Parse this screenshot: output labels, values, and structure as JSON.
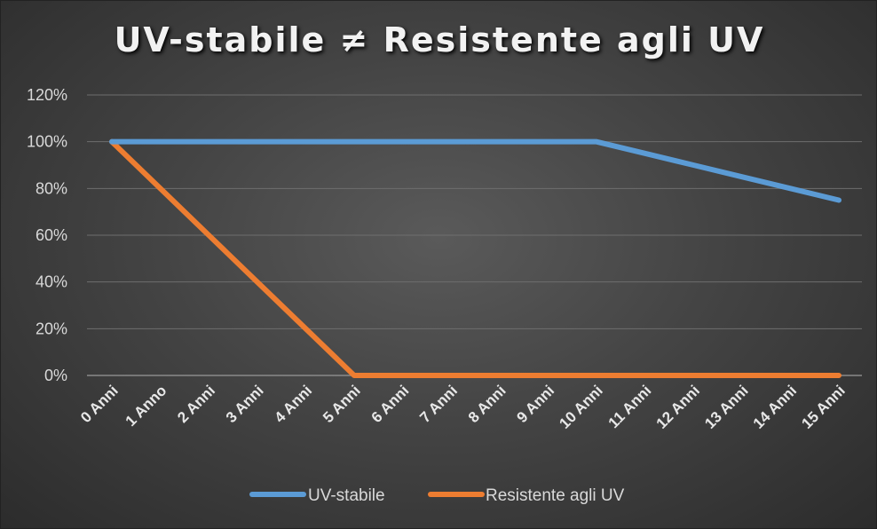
{
  "chart_data": {
    "type": "line",
    "title": "UV-stabile ≠ Resistente agli UV",
    "xlabel": "",
    "ylabel": "",
    "categories": [
      "0 Anni",
      "1 Anno",
      "2 Anni",
      "3 Anni",
      "4 Anni",
      "5 Anni",
      "6 Anni",
      "7 Anni",
      "8 Anni",
      "9 Anni",
      "10 Anni",
      "11 Anni",
      "12 Anni",
      "13 Anni",
      "14 Anni",
      "15 Anni"
    ],
    "y_ticks": [
      "0%",
      "20%",
      "40%",
      "60%",
      "80%",
      "100%",
      "120%"
    ],
    "ylim": [
      0,
      120
    ],
    "grid": true,
    "legend_position": "bottom",
    "series": [
      {
        "name": "UV-stabile",
        "color": "#5b9bd5",
        "values": [
          100,
          100,
          100,
          100,
          100,
          100,
          100,
          100,
          100,
          100,
          100,
          95,
          90,
          85,
          80,
          75
        ]
      },
      {
        "name": "Resistente agli UV",
        "color": "#ed7d31",
        "values": [
          100,
          80,
          60,
          40,
          20,
          0,
          0,
          0,
          0,
          0,
          0,
          0,
          0,
          0,
          0,
          0
        ]
      }
    ]
  }
}
